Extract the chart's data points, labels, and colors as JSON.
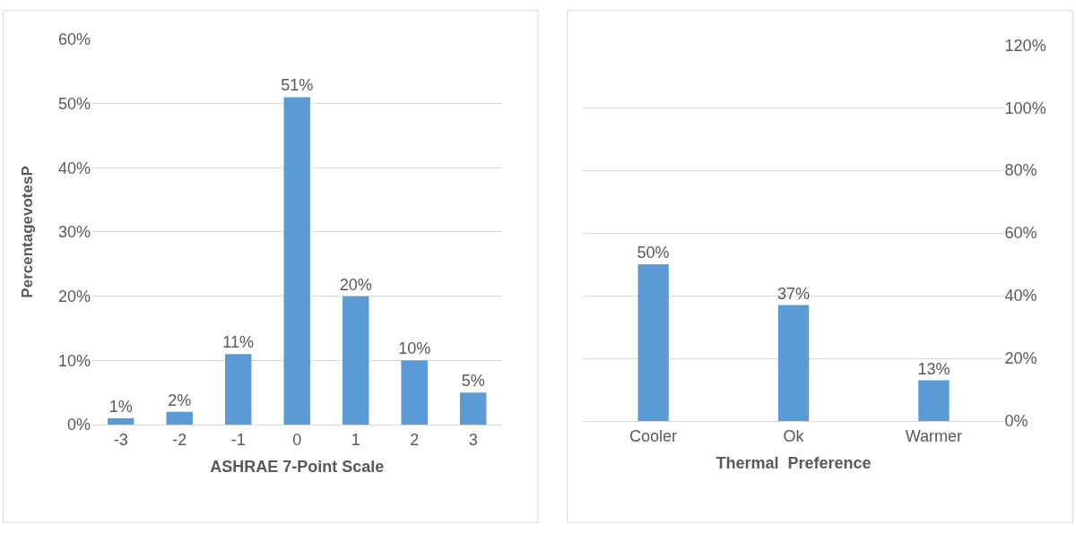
{
  "chart_data": [
    {
      "type": "bar",
      "xlabel": "ASHRAE 7-Point Scale",
      "ylabel": "PercentagevotesP",
      "categories": [
        "-3",
        "-2",
        "-1",
        "0",
        "1",
        "2",
        "3"
      ],
      "values": [
        1,
        2,
        11,
        51,
        20,
        10,
        5
      ],
      "color": "#5b9bd5",
      "value_labels": [
        "1%",
        "2%",
        "11%",
        "51%",
        "20%",
        "10%",
        "5%"
      ],
      "ylim": [
        0,
        60
      ],
      "yticks": [
        {
          "value": 0,
          "label": "0%"
        },
        {
          "value": 10,
          "label": "10%"
        },
        {
          "value": 20,
          "label": "20%"
        },
        {
          "value": 30,
          "label": "30%"
        },
        {
          "value": 40,
          "label": "40%"
        },
        {
          "value": 50,
          "label": "50%"
        },
        {
          "value": 60,
          "label": "60%"
        }
      ],
      "grid": "y"
    },
    {
      "type": "bar",
      "xlabel": "Thermal  Preference",
      "categories": [
        "Cooler",
        "Ok",
        "Warmer"
      ],
      "series": [
        {
          "values": [
            50,
            37,
            13
          ],
          "color": "#5b9bd5",
          "axis": "y2",
          "value_labels": [
            "50%",
            "37%",
            "13%"
          ]
        }
      ],
      "y2lim": [
        0,
        120
      ],
      "y2ticks": [
        {
          "value": 0,
          "label": "0%"
        },
        {
          "value": 20,
          "label": "20%"
        },
        {
          "value": 40,
          "label": "40%"
        },
        {
          "value": 60,
          "label": "60%"
        },
        {
          "value": 80,
          "label": "80%"
        },
        {
          "value": 100,
          "label": "100%"
        },
        {
          "value": 120,
          "label": "120%"
        }
      ],
      "grid": "y"
    }
  ]
}
